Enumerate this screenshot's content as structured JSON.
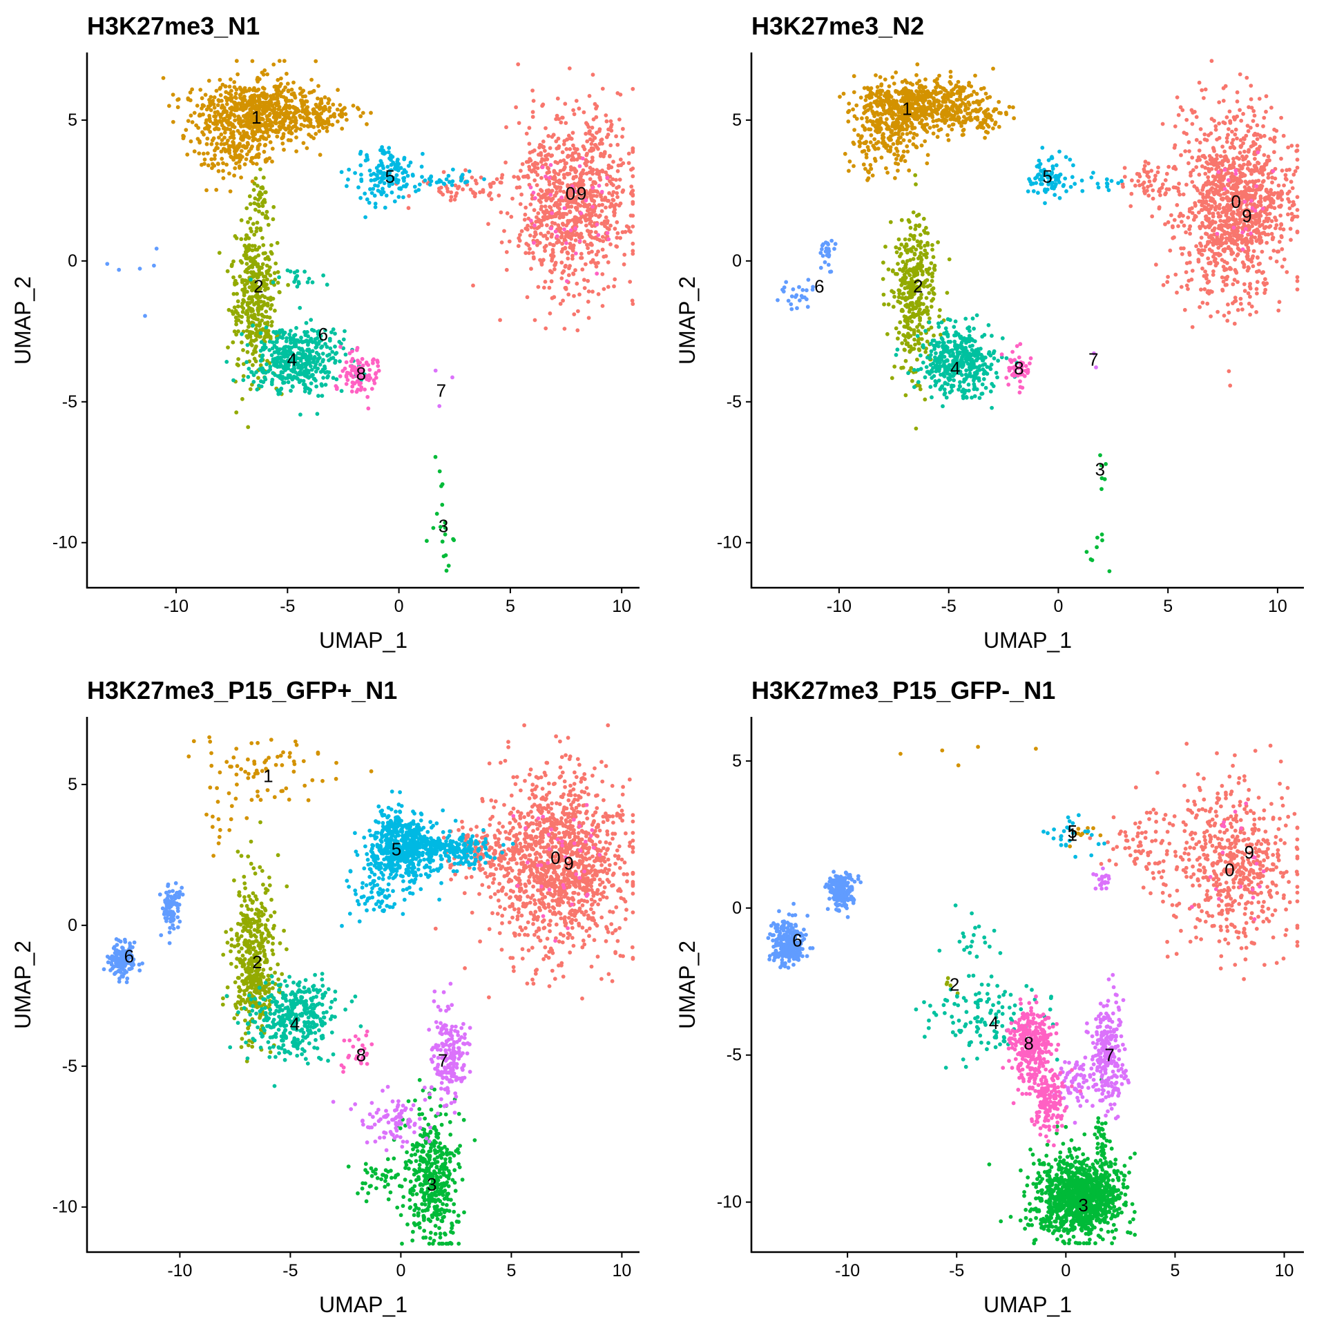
{
  "palette": {
    "0": "#F8766D",
    "1": "#D39200",
    "2": "#93AA00",
    "3": "#00BA38",
    "4": "#00C19F",
    "5": "#00B9E3",
    "6": "#619CFF",
    "7": "#DB72FB",
    "8": "#FF61C3",
    "9": "#FF61C3"
  },
  "chart_data": [
    {
      "type": "scatter",
      "title": "H3K27me3_N1",
      "xlabel": "UMAP_1",
      "ylabel": "UMAP_2",
      "xlim": [
        -14,
        10.8
      ],
      "ylim": [
        -11.6,
        7.4
      ],
      "xticks": [
        -10,
        -5,
        0,
        5,
        10
      ],
      "xtick_labels": [
        "-10",
        "-5",
        "0",
        "5",
        "10"
      ],
      "yticks": [
        5,
        0,
        -5,
        -10
      ],
      "ytick_labels": [
        "5",
        "0",
        "-5",
        "-10"
      ],
      "grid": false,
      "legend": "none",
      "clusters": [
        {
          "id": "0",
          "color": "#F8766D",
          "label_x": 7.7,
          "label_y": 2.4,
          "clouds": [
            {
              "cx": 7.8,
              "cy": 2.2,
              "sx": 1.3,
              "sy": 1.6,
              "n": 900
            },
            {
              "cx": 3,
              "cy": 2.6,
              "sx": 1.2,
              "sy": 0.3,
              "n": 60
            }
          ]
        },
        {
          "id": "1",
          "color": "#D39200",
          "label_x": -6.4,
          "label_y": 5.1,
          "clouds": [
            {
              "cx": -6.2,
              "cy": 5.3,
              "sx": 1.5,
              "sy": 0.6,
              "n": 650
            },
            {
              "cx": -7.4,
              "cy": 4.2,
              "sx": 0.9,
              "sy": 0.6,
              "n": 200
            },
            {
              "cx": -3.5,
              "cy": 5.1,
              "sx": 0.8,
              "sy": 0.3,
              "n": 60
            }
          ]
        },
        {
          "id": "2",
          "color": "#93AA00",
          "label_x": -6.3,
          "label_y": -0.9,
          "clouds": [
            {
              "cx": -6.5,
              "cy": -1.3,
              "sx": 0.5,
              "sy": 1.4,
              "n": 380
            },
            {
              "cx": -6.2,
              "cy": 2.1,
              "sx": 0.25,
              "sy": 0.5,
              "n": 40
            }
          ]
        },
        {
          "id": "3",
          "color": "#00BA38",
          "label_x": 2.0,
          "label_y": -9.4,
          "clouds": [
            {
              "cx": 2.0,
              "cy": -10.0,
              "sx": 0.25,
              "sy": 0.7,
              "n": 14
            },
            {
              "cx": 1.9,
              "cy": -7.4,
              "sx": 0.1,
              "sy": 0.4,
              "n": 5
            }
          ]
        },
        {
          "id": "4",
          "color": "#00C19F",
          "label_x": -4.8,
          "label_y": -3.5,
          "clouds": [
            {
              "cx": -4.6,
              "cy": -3.5,
              "sx": 1.0,
              "sy": 0.6,
              "n": 420
            },
            {
              "cx": -4.4,
              "cy": -0.6,
              "sx": 0.8,
              "sy": 0.2,
              "n": 20
            }
          ]
        },
        {
          "id": "5",
          "color": "#00B9E3",
          "label_x": -0.4,
          "label_y": 3.0,
          "clouds": [
            {
              "cx": -0.5,
              "cy": 3.0,
              "sx": 0.7,
              "sy": 0.5,
              "n": 140
            },
            {
              "cx": 2.0,
              "cy": 2.8,
              "sx": 1.0,
              "sy": 0.15,
              "n": 30
            }
          ]
        },
        {
          "id": "6",
          "color": "#619CFF",
          "label_x": -3.4,
          "label_y": -2.6,
          "clouds": [
            {
              "cx": -11.6,
              "cy": -0.7,
              "sx": 0.7,
              "sy": 0.5,
              "n": 6
            }
          ]
        },
        {
          "id": "7",
          "color": "#DB72FB",
          "label_x": 1.9,
          "label_y": -4.6,
          "clouds": [
            {
              "cx": 1.9,
              "cy": -4.5,
              "sx": 0.3,
              "sy": 0.7,
              "n": 3
            }
          ]
        },
        {
          "id": "8",
          "color": "#FF61C3",
          "label_x": -1.7,
          "label_y": -4.0,
          "clouds": [
            {
              "cx": -1.8,
              "cy": -4.0,
              "sx": 0.4,
              "sy": 0.4,
              "n": 90
            }
          ]
        },
        {
          "id": "9",
          "color": "#FF61C3",
          "label_x": 8.2,
          "label_y": 2.4,
          "clouds": [
            {
              "cx": 7.6,
              "cy": 2.0,
              "sx": 1.0,
              "sy": 1.2,
              "n": 40
            }
          ]
        }
      ]
    },
    {
      "type": "scatter",
      "title": "H3K27me3_N2",
      "xlabel": "UMAP_1",
      "ylabel": "UMAP_2",
      "xlim": [
        -14,
        11.2
      ],
      "ylim": [
        -11.6,
        7.4
      ],
      "xticks": [
        -10,
        -5,
        0,
        5,
        10
      ],
      "xtick_labels": [
        "-10",
        "-5",
        "0",
        "5",
        "10"
      ],
      "yticks": [
        5,
        0,
        -5,
        -10
      ],
      "ytick_labels": [
        "5",
        "0",
        "-5",
        "-10"
      ],
      "grid": false,
      "legend": "none",
      "clusters": [
        {
          "id": "0",
          "color": "#F8766D",
          "label_x": 8.1,
          "label_y": 2.1,
          "clouds": [
            {
              "cx": 8.0,
              "cy": 2.0,
              "sx": 1.3,
              "sy": 1.6,
              "n": 1100
            },
            {
              "cx": 4.4,
              "cy": 2.9,
              "sx": 0.8,
              "sy": 0.5,
              "n": 60
            }
          ]
        },
        {
          "id": "1",
          "color": "#D39200",
          "label_x": -6.9,
          "label_y": 5.4,
          "clouds": [
            {
              "cx": -6.3,
              "cy": 5.5,
              "sx": 1.5,
              "sy": 0.5,
              "n": 650
            },
            {
              "cx": -7.8,
              "cy": 4.3,
              "sx": 0.8,
              "sy": 0.6,
              "n": 150
            },
            {
              "cx": -3.4,
              "cy": 5.0,
              "sx": 0.6,
              "sy": 0.3,
              "n": 40
            }
          ]
        },
        {
          "id": "2",
          "color": "#93AA00",
          "label_x": -6.4,
          "label_y": -0.9,
          "clouds": [
            {
              "cx": -6.6,
              "cy": -1.2,
              "sx": 0.5,
              "sy": 1.4,
              "n": 380
            }
          ]
        },
        {
          "id": "3",
          "color": "#00BA38",
          "label_x": 1.9,
          "label_y": -7.4,
          "clouds": [
            {
              "cx": 1.8,
              "cy": -10.2,
              "sx": 0.3,
              "sy": 0.4,
              "n": 8
            },
            {
              "cx": 2.0,
              "cy": -7.5,
              "sx": 0.1,
              "sy": 0.4,
              "n": 6
            }
          ]
        },
        {
          "id": "4",
          "color": "#00C19F",
          "label_x": -4.7,
          "label_y": -3.8,
          "clouds": [
            {
              "cx": -4.6,
              "cy": -3.6,
              "sx": 0.9,
              "sy": 0.6,
              "n": 420
            }
          ]
        },
        {
          "id": "5",
          "color": "#00B9E3",
          "label_x": -0.5,
          "label_y": 3.0,
          "clouds": [
            {
              "cx": -0.5,
              "cy": 3.0,
              "sx": 0.5,
              "sy": 0.4,
              "n": 80
            },
            {
              "cx": 1.8,
              "cy": 2.8,
              "sx": 0.9,
              "sy": 0.15,
              "n": 15
            }
          ]
        },
        {
          "id": "6",
          "color": "#619CFF",
          "label_x": -10.9,
          "label_y": -0.9,
          "clouds": [
            {
              "cx": -10.6,
              "cy": 0.3,
              "sx": 0.2,
              "sy": 0.25,
              "n": 25
            },
            {
              "cx": -12.0,
              "cy": -1.1,
              "sx": 0.35,
              "sy": 0.35,
              "n": 25
            }
          ]
        },
        {
          "id": "7",
          "color": "#DB72FB",
          "label_x": 1.6,
          "label_y": -3.5,
          "clouds": [
            {
              "cx": 1.7,
              "cy": -3.3,
              "sx": 0.05,
              "sy": 0.2,
              "n": 2
            }
          ]
        },
        {
          "id": "8",
          "color": "#FF61C3",
          "label_x": -1.8,
          "label_y": -3.8,
          "clouds": [
            {
              "cx": -1.8,
              "cy": -3.8,
              "sx": 0.35,
              "sy": 0.35,
              "n": 50
            }
          ]
        },
        {
          "id": "9",
          "color": "#FF61C3",
          "label_x": 8.6,
          "label_y": 1.6,
          "clouds": [
            {
              "cx": 8.5,
              "cy": 1.7,
              "sx": 0.8,
              "sy": 1.0,
              "n": 20
            }
          ]
        }
      ]
    },
    {
      "type": "scatter",
      "title": "H3K27me3_P15_GFP+_N1",
      "xlabel": "UMAP_1",
      "ylabel": "UMAP_2",
      "xlim": [
        -14.2,
        10.8
      ],
      "ylim": [
        -11.6,
        7.4
      ],
      "xticks": [
        -10,
        -5,
        0,
        5,
        10
      ],
      "xtick_labels": [
        "-10",
        "-5",
        "0",
        "5",
        "10"
      ],
      "yticks": [
        5,
        0,
        -5,
        -10
      ],
      "ytick_labels": [
        "5",
        "0",
        "-5",
        "-10"
      ],
      "grid": false,
      "legend": "none",
      "clusters": [
        {
          "id": "0",
          "color": "#F8766D",
          "label_x": 7.0,
          "label_y": 2.4,
          "clouds": [
            {
              "cx": 7.2,
              "cy": 2.2,
              "sx": 1.5,
              "sy": 1.6,
              "n": 1200
            },
            {
              "cx": 4.0,
              "cy": 2.6,
              "sx": 1.0,
              "sy": 0.5,
              "n": 150
            }
          ]
        },
        {
          "id": "1",
          "color": "#D39200",
          "label_x": -6.0,
          "label_y": 5.3,
          "clouds": [
            {
              "cx": -6.2,
              "cy": 5.5,
              "sx": 1.5,
              "sy": 0.6,
              "n": 70
            },
            {
              "cx": -8.3,
              "cy": 3.8,
              "sx": 0.6,
              "sy": 0.6,
              "n": 15
            }
          ]
        },
        {
          "id": "2",
          "color": "#93AA00",
          "label_x": -6.5,
          "label_y": -1.3,
          "clouds": [
            {
              "cx": -6.6,
              "cy": -1.3,
              "sx": 0.5,
              "sy": 1.4,
              "n": 450
            }
          ]
        },
        {
          "id": "3",
          "color": "#00BA38",
          "label_x": 1.4,
          "label_y": -9.2,
          "clouds": [
            {
              "cx": 1.4,
              "cy": -9.0,
              "sx": 0.6,
              "sy": 1.2,
              "n": 420
            },
            {
              "cx": -1.0,
              "cy": -9.0,
              "sx": 0.6,
              "sy": 0.4,
              "n": 40
            }
          ]
        },
        {
          "id": "4",
          "color": "#00C19F",
          "label_x": -4.8,
          "label_y": -3.5,
          "clouds": [
            {
              "cx": -4.9,
              "cy": -3.3,
              "sx": 1.0,
              "sy": 0.7,
              "n": 360
            }
          ]
        },
        {
          "id": "5",
          "color": "#00B9E3",
          "label_x": -0.2,
          "label_y": 2.7,
          "clouds": [
            {
              "cx": 0.1,
              "cy": 2.8,
              "sx": 0.8,
              "sy": 0.6,
              "n": 550
            },
            {
              "cx": 2.3,
              "cy": 2.7,
              "sx": 1.0,
              "sy": 0.3,
              "n": 200
            },
            {
              "cx": -1.2,
              "cy": 1.0,
              "sx": 0.6,
              "sy": 0.5,
              "n": 60
            }
          ]
        },
        {
          "id": "6",
          "color": "#619CFF",
          "label_x": -12.3,
          "label_y": -1.1,
          "clouds": [
            {
              "cx": -12.6,
              "cy": -1.2,
              "sx": 0.3,
              "sy": 0.3,
              "n": 150
            },
            {
              "cx": -10.4,
              "cy": 0.6,
              "sx": 0.25,
              "sy": 0.35,
              "n": 100
            }
          ]
        },
        {
          "id": "7",
          "color": "#DB72FB",
          "label_x": 1.9,
          "label_y": -4.8,
          "clouds": [
            {
              "cx": 2.2,
              "cy": -4.6,
              "sx": 0.4,
              "sy": 0.9,
              "n": 180
            },
            {
              "cx": -0.3,
              "cy": -6.9,
              "sx": 0.8,
              "sy": 0.5,
              "n": 90
            }
          ]
        },
        {
          "id": "8",
          "color": "#FF61C3",
          "label_x": -1.8,
          "label_y": -4.6,
          "clouds": [
            {
              "cx": -2.0,
              "cy": -4.4,
              "sx": 0.4,
              "sy": 0.3,
              "n": 25
            }
          ]
        },
        {
          "id": "9",
          "color": "#FF61C3",
          "label_x": 7.6,
          "label_y": 2.2,
          "clouds": [
            {
              "cx": 7.3,
              "cy": 2.2,
              "sx": 1.0,
              "sy": 1.0,
              "n": 40
            }
          ]
        }
      ]
    },
    {
      "type": "scatter",
      "title": "H3K27me3_P15_GFP-_N1",
      "xlabel": "UMAP_1",
      "ylabel": "UMAP_2",
      "xlim": [
        -14.4,
        10.9
      ],
      "ylim": [
        -11.7,
        6.5
      ],
      "xticks": [
        -10,
        -5,
        0,
        5,
        10
      ],
      "xtick_labels": [
        "-10",
        "-5",
        "0",
        "5",
        "10"
      ],
      "yticks": [
        5,
        0,
        -5,
        -10
      ],
      "ytick_labels": [
        "5",
        "0",
        "-5",
        "-10"
      ],
      "grid": false,
      "legend": "none",
      "clusters": [
        {
          "id": "0",
          "color": "#F8766D",
          "label_x": 7.5,
          "label_y": 1.3,
          "clouds": [
            {
              "cx": 7.6,
              "cy": 1.5,
              "sx": 1.5,
              "sy": 1.4,
              "n": 550
            },
            {
              "cx": 3.6,
              "cy": 2.3,
              "sx": 1.2,
              "sy": 0.5,
              "n": 60
            }
          ]
        },
        {
          "id": "1",
          "color": "#D39200",
          "label_x": 0.3,
          "label_y": 2.5,
          "clouds": [
            {
              "cx": -5.0,
              "cy": 5.4,
              "sx": 1.4,
              "sy": 0.25,
              "n": 5
            },
            {
              "cx": 1.0,
              "cy": 2.6,
              "sx": 0.6,
              "sy": 0.2,
              "n": 10
            }
          ]
        },
        {
          "id": "2",
          "color": "#93AA00",
          "label_x": -5.1,
          "label_y": -2.6,
          "clouds": [
            {
              "cx": -5.3,
              "cy": -2.6,
              "sx": 0.3,
              "sy": 0.3,
              "n": 5
            }
          ]
        },
        {
          "id": "3",
          "color": "#00BA38",
          "label_x": 0.8,
          "label_y": -10.1,
          "clouds": [
            {
              "cx": 0.6,
              "cy": -9.8,
              "sx": 1.0,
              "sy": 0.7,
              "n": 1100
            },
            {
              "cx": 1.6,
              "cy": -7.8,
              "sx": 0.2,
              "sy": 0.6,
              "n": 30
            }
          ]
        },
        {
          "id": "4",
          "color": "#00C19F",
          "label_x": -3.3,
          "label_y": -3.9,
          "clouds": [
            {
              "cx": -3.6,
              "cy": -3.8,
              "sx": 1.4,
              "sy": 0.7,
              "n": 120
            },
            {
              "cx": -4.4,
              "cy": -1.0,
              "sx": 0.7,
              "sy": 0.4,
              "n": 20
            }
          ]
        },
        {
          "id": "5",
          "color": "#00B9E3",
          "label_x": 0.3,
          "label_y": 2.6,
          "clouds": [
            {
              "cx": 0.2,
              "cy": 2.5,
              "sx": 0.6,
              "sy": 0.4,
              "n": 25
            }
          ]
        },
        {
          "id": "6",
          "color": "#619CFF",
          "label_x": -12.3,
          "label_y": -1.1,
          "clouds": [
            {
              "cx": -12.7,
              "cy": -1.2,
              "sx": 0.35,
              "sy": 0.35,
              "n": 260
            },
            {
              "cx": -10.3,
              "cy": 0.6,
              "sx": 0.3,
              "sy": 0.3,
              "n": 200
            }
          ]
        },
        {
          "id": "7",
          "color": "#DB72FB",
          "label_x": 2.0,
          "label_y": -5.0,
          "clouds": [
            {
              "cx": 2.0,
              "cy": -4.8,
              "sx": 0.35,
              "sy": 0.9,
              "n": 220
            },
            {
              "cx": 0.6,
              "cy": -5.9,
              "sx": 0.6,
              "sy": 0.4,
              "n": 80
            },
            {
              "cx": 1.7,
              "cy": 0.9,
              "sx": 0.3,
              "sy": 0.15,
              "n": 20
            }
          ]
        },
        {
          "id": "8",
          "color": "#FF61C3",
          "label_x": -1.7,
          "label_y": -4.6,
          "clouds": [
            {
              "cx": -1.6,
              "cy": -4.6,
              "sx": 0.5,
              "sy": 0.6,
              "n": 320
            },
            {
              "cx": -0.8,
              "cy": -6.6,
              "sx": 0.4,
              "sy": 0.5,
              "n": 150
            }
          ]
        },
        {
          "id": "9",
          "color": "#FF61C3",
          "label_x": 8.4,
          "label_y": 1.9,
          "clouds": [
            {
              "cx": 7.5,
              "cy": 1.5,
              "sx": 1.0,
              "sy": 1.0,
              "n": 20
            }
          ]
        }
      ]
    }
  ]
}
